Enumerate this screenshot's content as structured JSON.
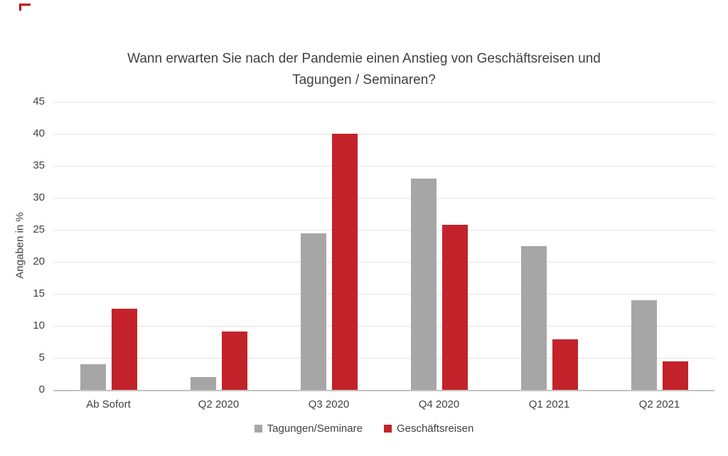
{
  "decorations": {
    "corner_mark_color": "#C00000"
  },
  "chart_data": {
    "type": "bar",
    "title": "Wann erwarten Sie nach der Pandemie einen Anstieg von Geschäftsreisen und Tagungen / Seminaren?",
    "title_lines": [
      "Wann erwarten Sie nach der Pandemie einen Anstieg von Geschäftsreisen und",
      "Tagungen / Seminaren?"
    ],
    "categories": [
      "Ab Sofort",
      "Q2 2020",
      "Q3 2020",
      "Q4 2020",
      "Q1 2021",
      "Q2 2021"
    ],
    "series": [
      {
        "name": "Tagungen/Seminare",
        "color": "#A6A6A6",
        "values": [
          4,
          2,
          24.5,
          33,
          22.4,
          14
        ]
      },
      {
        "name": "Geschäftsreisen",
        "color": "#C3222A",
        "values": [
          12.7,
          9.1,
          40,
          25.8,
          7.9,
          4.4
        ]
      }
    ],
    "xlabel": "",
    "ylabel": "Angaben in %",
    "ylim": [
      0,
      45
    ],
    "ytick_step": 5,
    "grid": true,
    "legend_position": "bottom",
    "colors": {
      "text": "#404040",
      "gridline": "#E2E2E2",
      "axis_line": "#C2C2C2"
    }
  }
}
